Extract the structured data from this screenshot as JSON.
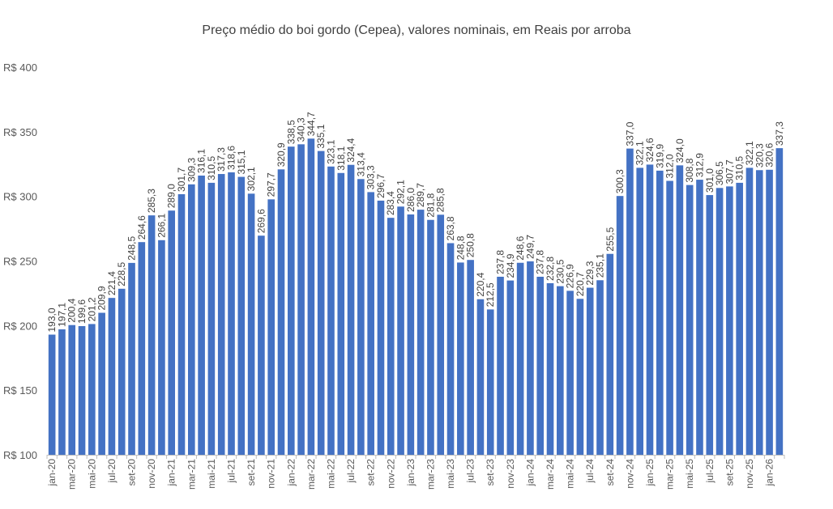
{
  "chart_data": {
    "type": "bar",
    "title": "Preço médio do boi gordo (Cepea), valores nominais, em Reais por arroba",
    "xlabel": "",
    "ylabel": "",
    "ylim": [
      100,
      400
    ],
    "y_ticks": [
      100,
      150,
      200,
      250,
      300,
      350,
      400
    ],
    "y_tick_labels": [
      "R$ 100",
      "R$ 150",
      "R$ 200",
      "R$ 250",
      "R$ 300",
      "R$ 350",
      "R$ 400"
    ],
    "grid": false,
    "bar_color": "#4472C4",
    "categories": [
      "jan-20",
      "fev-20",
      "mar-20",
      "abr-20",
      "mai-20",
      "jun-20",
      "jul-20",
      "ago-20",
      "set-20",
      "out-20",
      "nov-20",
      "dez-20",
      "jan-21",
      "fev-21",
      "mar-21",
      "abr-21",
      "mai-21",
      "jun-21",
      "jul-21",
      "ago-21",
      "set-21",
      "out-21",
      "nov-21",
      "dez-21",
      "jan-22",
      "fev-22",
      "mar-22",
      "abr-22",
      "mai-22",
      "jun-22",
      "jul-22",
      "ago-22",
      "set-22",
      "out-22",
      "nov-22",
      "dez-22",
      "jan-23",
      "fev-23",
      "mar-23",
      "abr-23",
      "mai-23",
      "jun-23",
      "jul-23",
      "ago-23",
      "set-23",
      "out-23",
      "nov-23",
      "dez-23",
      "jan-24",
      "fev-24",
      "mar-24",
      "abr-24",
      "mai-24",
      "jun-24",
      "jul-24",
      "ago-24",
      "set-24",
      "out-24",
      "nov-24",
      "dez-24",
      "jan-25",
      "fev-25",
      "mar-25",
      "abr-25",
      "mai-25",
      "jun-25",
      "jul-25",
      "ago-25",
      "set-25",
      "out-25",
      "nov-25",
      "dez-25",
      "jan-26",
      "fev-26"
    ],
    "x_tick_labels": [
      "jan-20",
      "",
      "mar-20",
      "",
      "mai-20",
      "",
      "jul-20",
      "",
      "set-20",
      "",
      "nov-20",
      "",
      "jan-21",
      "",
      "mar-21",
      "",
      "mai-21",
      "",
      "jul-21",
      "",
      "set-21",
      "",
      "nov-21",
      "",
      "jan-22",
      "",
      "mar-22",
      "",
      "mai-22",
      "",
      "jul-22",
      "",
      "set-22",
      "",
      "nov-22",
      "",
      "jan-23",
      "",
      "mar-23",
      "",
      "mai-23",
      "",
      "jul-23",
      "",
      "set-23",
      "",
      "nov-23",
      "",
      "jan-24",
      "",
      "mar-24",
      "",
      "mai-24",
      "",
      "jul-24",
      "",
      "set-24",
      "",
      "nov-24",
      "",
      "jan-25",
      "",
      "mar-25",
      "",
      "mai-25",
      "",
      "jul-25",
      "",
      "set-25",
      "",
      "nov-25",
      "",
      "jan-26",
      ""
    ],
    "values": [
      193.0,
      197.1,
      200.4,
      199.6,
      201.2,
      209.9,
      221.4,
      228.5,
      248.5,
      264.6,
      285.3,
      266.1,
      289.0,
      301.7,
      309.3,
      316.1,
      310.5,
      317.3,
      318.6,
      315.1,
      302.1,
      269.6,
      297.7,
      320.9,
      338.5,
      340.3,
      344.7,
      335.1,
      323.1,
      318.1,
      324.4,
      313.4,
      303.3,
      296.7,
      283.4,
      292.1,
      286.0,
      289.7,
      281.8,
      285.8,
      263.8,
      248.8,
      250.8,
      220.4,
      212.5,
      237.8,
      234.9,
      248.6,
      249.7,
      237.8,
      232.8,
      230.5,
      226.9,
      220.7,
      229.3,
      235.1,
      255.5,
      300.3,
      337.0,
      322.1,
      324.6,
      319.9,
      312.0,
      324.0,
      308.8,
      312.9,
      301.0,
      306.5,
      307.7,
      310.5,
      322.1,
      320.3,
      320.6,
      337.3
    ],
    "data_labels": [
      "193,0",
      "197,1",
      "200,4",
      "199,6",
      "201,2",
      "209,9",
      "221,4",
      "228,5",
      "248,5",
      "264,6",
      "285,3",
      "266,1",
      "289,0",
      "301,7",
      "309,3",
      "316,1",
      "310,5",
      "317,3",
      "318,6",
      "315,1",
      "302,1",
      "269,6",
      "297,7",
      "320,9",
      "338,5",
      "340,3",
      "344,7",
      "335,1",
      "323,1",
      "318,1",
      "324,4",
      "313,4",
      "303,3",
      "296,7",
      "283,4",
      "292,1",
      "286,0",
      "289,7",
      "281,8",
      "285,8",
      "263,8",
      "248,8",
      "250,8",
      "220,4",
      "212,5",
      "237,8",
      "234,9",
      "248,6",
      "249,7",
      "237,8",
      "232,8",
      "230,5",
      "226,9",
      "220,7",
      "229,3",
      "235,1",
      "255,5",
      "300,3",
      "337,0",
      "322,1",
      "324,6",
      "319,9",
      "312,0",
      "324,0",
      "308,8",
      "312,9",
      "301,0",
      "306,5",
      "307,7",
      "310,5",
      "322,1",
      "320,3",
      "320,6",
      "337,3"
    ]
  }
}
